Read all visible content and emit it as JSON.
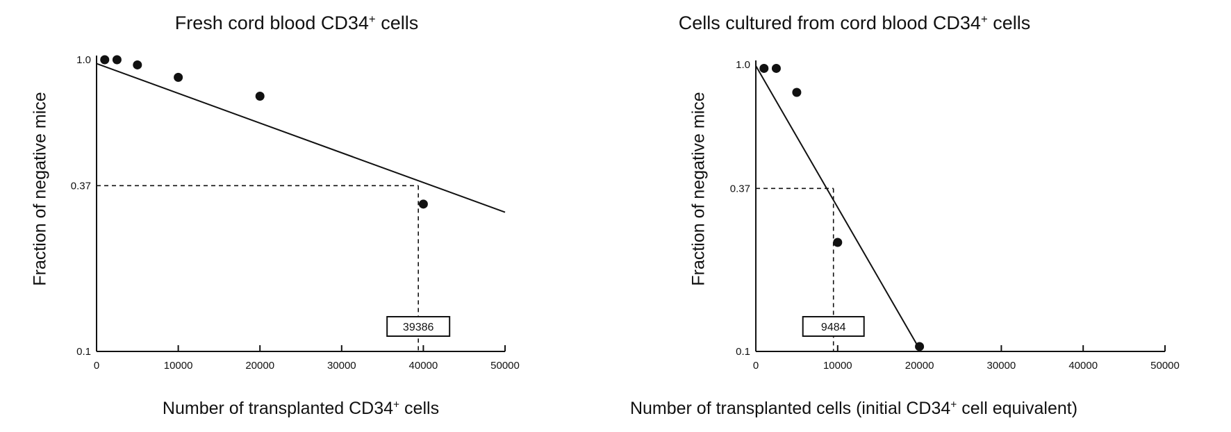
{
  "chart_data": [
    {
      "type": "scatter",
      "title": {
        "main": "Fresh cord blood CD34",
        "sup": "+",
        "tail": " cells"
      },
      "xlabel": {
        "main": "Number of transplanted CD34",
        "sup": "+",
        "tail": " cells"
      },
      "ylabel": "Fraction of negative mice",
      "xlim": [
        0,
        50000
      ],
      "ylim": [
        0.1,
        1.0
      ],
      "yscale": "log",
      "xticks": [
        0,
        10000,
        20000,
        30000,
        40000,
        50000
      ],
      "xtick_labels": [
        "0",
        "10000",
        "20000",
        "30000",
        "40000",
        "50000"
      ],
      "yticks": [
        0.1,
        0.37,
        1.0
      ],
      "ytick_labels": [
        "0.1",
        "0.37",
        "1.0"
      ],
      "points": [
        {
          "x": 1000,
          "y": 1.0
        },
        {
          "x": 2500,
          "y": 1.0
        },
        {
          "x": 5000,
          "y": 0.96
        },
        {
          "x": 10000,
          "y": 0.87
        },
        {
          "x": 20000,
          "y": 0.75
        },
        {
          "x": 40000,
          "y": 0.32
        }
      ],
      "fit_line": [
        {
          "x": 0,
          "y": 0.97
        },
        {
          "x": 50000,
          "y": 0.3
        }
      ],
      "annotation": {
        "x": 39386,
        "y": 0.37,
        "label": "39386"
      }
    },
    {
      "type": "scatter",
      "title": {
        "main": "Cells cultured from cord blood CD34",
        "sup": "+",
        "tail": " cells"
      },
      "xlabel": {
        "main": "Number of transplanted cells (initial CD34",
        "sup": "+",
        "tail": " cell equivalent)"
      },
      "ylabel": "Fraction of negative mice",
      "xlim": [
        0,
        50000
      ],
      "ylim": [
        0.1,
        1.0
      ],
      "yscale": "log",
      "xticks": [
        0,
        10000,
        20000,
        30000,
        40000,
        50000
      ],
      "xtick_labels": [
        "0",
        "10000",
        "20000",
        "30000",
        "40000",
        "50000"
      ],
      "yticks": [
        0.1,
        0.37,
        1.0
      ],
      "ytick_labels": [
        "0.1",
        "0.37",
        "1.0"
      ],
      "points": [
        {
          "x": 1000,
          "y": 0.97
        },
        {
          "x": 2500,
          "y": 0.97
        },
        {
          "x": 5000,
          "y": 0.8
        },
        {
          "x": 10000,
          "y": 0.24
        },
        {
          "x": 20000,
          "y": 0.104
        }
      ],
      "fit_line": [
        {
          "x": 0,
          "y": 0.99
        },
        {
          "x": 20000,
          "y": 0.102
        }
      ],
      "annotation": {
        "x": 9484,
        "y": 0.37,
        "label": "9484"
      }
    }
  ]
}
